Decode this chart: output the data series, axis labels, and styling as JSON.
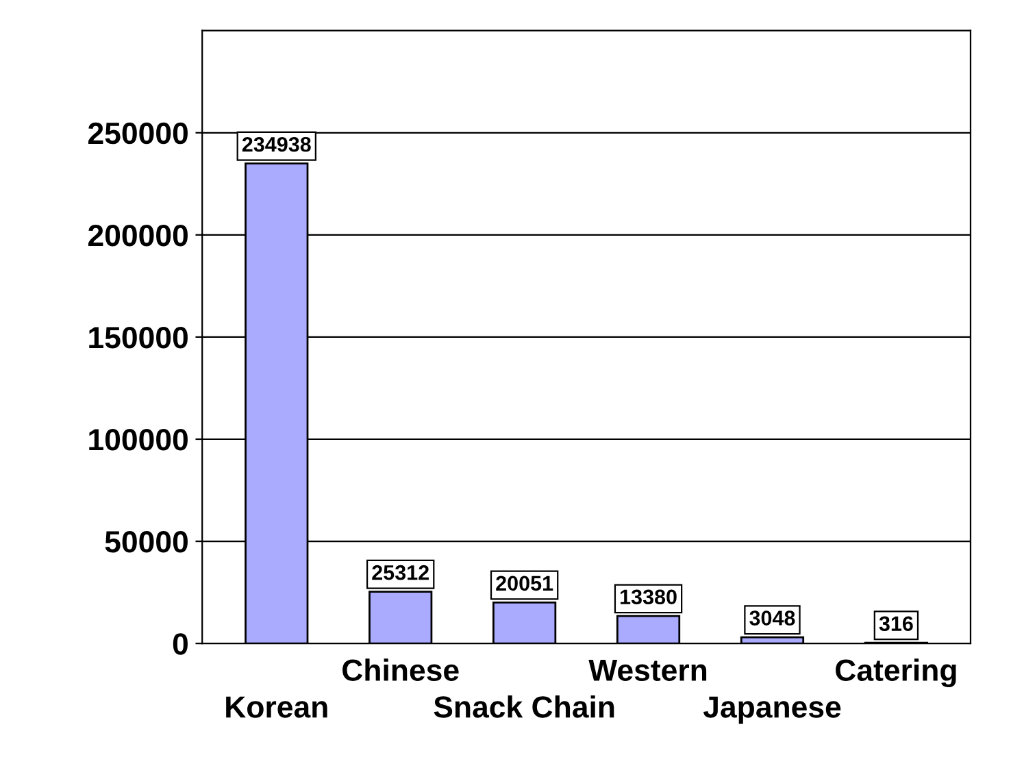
{
  "chart_data": {
    "type": "bar",
    "categories": [
      "Korean",
      "Chinese",
      "Snack Chain",
      "Western",
      "Japanese",
      "Catering"
    ],
    "values": [
      234938,
      25312,
      20051,
      13380,
      3048,
      316
    ],
    "color": "#aaaaff",
    "ylim": [
      0,
      300000
    ],
    "yticks": [
      0,
      50000,
      100000,
      150000,
      200000,
      250000
    ],
    "grid": "y",
    "data_labels": true
  }
}
